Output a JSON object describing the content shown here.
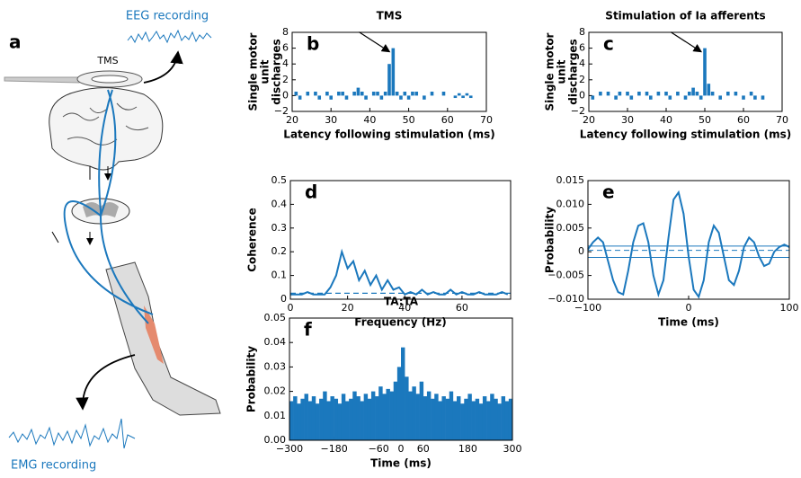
{
  "illustration": {
    "label": "a",
    "eeg": "EEG recording",
    "tms": "TMS",
    "emg": "EMG recording"
  },
  "chart_data": [
    {
      "type": "bar",
      "panel": "b",
      "title": "TMS",
      "y_label": "Single motor unit discharges",
      "x_label": "Latency following stimulation (ms)",
      "color": "#1b78bd",
      "x": [
        21,
        22,
        24,
        26,
        27,
        29,
        30,
        32,
        33,
        34,
        36,
        37,
        38,
        39,
        41,
        42,
        43,
        44,
        45,
        46,
        47,
        48,
        49,
        50,
        51,
        52,
        54,
        56,
        59,
        62,
        63,
        64,
        65,
        66
      ],
      "values": [
        0.5,
        -0.5,
        0.5,
        0.5,
        -0.5,
        0.5,
        -0.5,
        0.5,
        0.5,
        -0.5,
        0.5,
        1,
        0.5,
        -0.5,
        0.5,
        0.5,
        -0.5,
        0.5,
        4,
        6,
        0.5,
        -0.5,
        0.5,
        -0.5,
        0.5,
        0.5,
        -0.5,
        0.5,
        0.5,
        -0.3,
        0.3,
        -0.3,
        0.3,
        -0.3
      ],
      "xlim": [
        20,
        70
      ],
      "xticks": [
        20,
        30,
        40,
        50,
        60,
        70
      ],
      "ylim": [
        -2,
        8
      ],
      "yticks": [
        {
          "value": -2,
          "label": "−2"
        },
        0,
        2,
        4,
        6,
        8
      ]
    },
    {
      "type": "bar",
      "panel": "c",
      "title": "Stimulation of Ia afferents",
      "y_label": "Single motor unit discharges",
      "x_label": "Latency following stimulation (ms)",
      "color": "#1b78bd",
      "x": [
        21,
        23,
        25,
        27,
        28,
        30,
        31,
        33,
        35,
        36,
        38,
        40,
        41,
        43,
        45,
        46,
        47,
        48,
        49,
        50,
        51,
        52,
        54,
        56,
        58,
        60,
        62,
        63,
        65
      ],
      "values": [
        -0.5,
        0.5,
        0.5,
        -0.5,
        0.5,
        0.5,
        -0.5,
        0.5,
        0.5,
        -0.5,
        0.5,
        0.5,
        -0.5,
        0.5,
        -0.5,
        0.5,
        1,
        0.5,
        -0.5,
        6,
        1.5,
        0.5,
        -0.5,
        0.5,
        0.5,
        -0.5,
        0.5,
        -0.5,
        -0.5
      ],
      "xlim": [
        20,
        70
      ],
      "xticks": [
        20,
        30,
        40,
        50,
        60,
        70
      ],
      "ylim": [
        -2,
        8
      ],
      "yticks": [
        {
          "value": -2,
          "label": "−2"
        },
        0,
        2,
        4,
        6,
        8
      ]
    },
    {
      "type": "line",
      "panel": "d",
      "y_label": "Coherence",
      "x_label": "Frequency (Hz)",
      "color": "#1b78bd",
      "x": [
        0,
        2,
        4,
        6,
        8,
        10,
        12,
        14,
        16,
        18,
        20,
        22,
        24,
        26,
        28,
        30,
        32,
        34,
        36,
        38,
        40,
        42,
        44,
        46,
        48,
        50,
        52,
        54,
        56,
        58,
        60,
        62,
        64,
        66,
        68,
        70,
        72,
        74,
        76
      ],
      "values": [
        0.02,
        0.02,
        0.02,
        0.03,
        0.02,
        0.02,
        0.02,
        0.05,
        0.1,
        0.2,
        0.13,
        0.16,
        0.08,
        0.12,
        0.06,
        0.1,
        0.04,
        0.08,
        0.04,
        0.05,
        0.02,
        0.03,
        0.02,
        0.04,
        0.02,
        0.03,
        0.02,
        0.02,
        0.04,
        0.02,
        0.03,
        0.02,
        0.02,
        0.03,
        0.02,
        0.02,
        0.02,
        0.03,
        0.02
      ],
      "threshold": 0.025,
      "xlim": [
        0,
        77
      ],
      "xticks": [
        0,
        20,
        40,
        60
      ],
      "ylim": [
        0,
        0.5
      ],
      "yticks": [
        0,
        0.1,
        0.2,
        0.3,
        0.4,
        0.5
      ]
    },
    {
      "type": "line",
      "panel": "e",
      "y_label": "Probability",
      "x_label": "Time (ms)",
      "color": "#1b78bd",
      "x": [
        -100,
        -95,
        -90,
        -85,
        -80,
        -75,
        -70,
        -65,
        -60,
        -55,
        -50,
        -45,
        -40,
        -35,
        -30,
        -25,
        -20,
        -15,
        -10,
        -5,
        0,
        5,
        10,
        15,
        20,
        25,
        30,
        35,
        40,
        45,
        50,
        55,
        60,
        65,
        70,
        75,
        80,
        85,
        90,
        95,
        100
      ],
      "values": [
        0.0005,
        0.002,
        0.003,
        0.002,
        -0.002,
        -0.006,
        -0.0085,
        -0.009,
        -0.004,
        0.002,
        0.0055,
        0.006,
        0.002,
        -0.005,
        -0.009,
        -0.006,
        0.003,
        0.011,
        0.0125,
        0.008,
        -0.001,
        -0.008,
        -0.0095,
        -0.006,
        0.002,
        0.0055,
        0.004,
        -0.001,
        -0.006,
        -0.007,
        -0.004,
        0.001,
        0.003,
        0.002,
        -0.001,
        -0.003,
        -0.0025,
        0,
        0.001,
        0.0015,
        0.001
      ],
      "confidence_limits": [
        -0.0012,
        0.0012
      ],
      "mean": 0.0003,
      "xlim": [
        -100,
        100
      ],
      "xticks": [
        {
          "value": -100,
          "label": "−100"
        },
        0,
        100
      ],
      "ylim": [
        -0.01,
        0.015
      ],
      "yticks": [
        {
          "value": -0.01,
          "label": "−0.010"
        },
        {
          "value": -0.005,
          "label": "−0.005"
        },
        0,
        0.005,
        {
          "value": 0.01,
          "label": "0.010"
        },
        0.015
      ]
    },
    {
      "type": "histogram",
      "panel": "f",
      "title": "TA:TA",
      "y_label": "Probability",
      "x_label": "Time (ms)",
      "color": "#1b78bd",
      "bins": [
        -300,
        -290,
        -280,
        -270,
        -260,
        -250,
        -240,
        -230,
        -220,
        -210,
        -200,
        -190,
        -180,
        -170,
        -160,
        -150,
        -140,
        -130,
        -120,
        -110,
        -100,
        -90,
        -80,
        -70,
        -60,
        -50,
        -40,
        -30,
        -20,
        -10,
        0,
        10,
        20,
        30,
        40,
        50,
        60,
        70,
        80,
        90,
        100,
        110,
        120,
        130,
        140,
        150,
        160,
        170,
        180,
        190,
        200,
        210,
        220,
        230,
        240,
        250,
        260,
        270,
        280,
        290,
        300
      ],
      "values": [
        0.016,
        0.018,
        0.015,
        0.017,
        0.019,
        0.016,
        0.018,
        0.015,
        0.017,
        0.02,
        0.016,
        0.018,
        0.017,
        0.015,
        0.019,
        0.016,
        0.017,
        0.02,
        0.018,
        0.016,
        0.019,
        0.017,
        0.02,
        0.018,
        0.022,
        0.019,
        0.021,
        0.02,
        0.024,
        0.03,
        0.038,
        0.026,
        0.02,
        0.022,
        0.019,
        0.024,
        0.018,
        0.02,
        0.017,
        0.019,
        0.016,
        0.018,
        0.017,
        0.02,
        0.016,
        0.018,
        0.015,
        0.017,
        0.019,
        0.016,
        0.017,
        0.015,
        0.018,
        0.016,
        0.019,
        0.017,
        0.015,
        0.018,
        0.016,
        0.017
      ],
      "xlim": [
        -300,
        300
      ],
      "xticks": [
        {
          "value": -300,
          "label": "−300"
        },
        {
          "value": -180,
          "label": "−180"
        },
        {
          "value": -60,
          "label": "−60"
        },
        0,
        60,
        180,
        300
      ],
      "ylim": [
        0,
        0.05
      ],
      "yticks": [
        {
          "value": 0,
          "label": "0.00"
        },
        0.01,
        0.02,
        0.03,
        0.04,
        0.05
      ]
    }
  ]
}
